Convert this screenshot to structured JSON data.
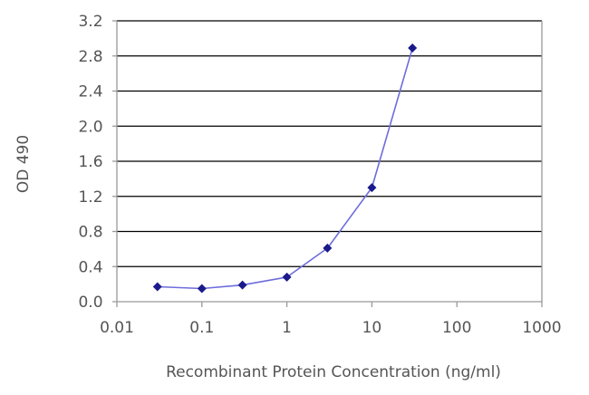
{
  "chart_data": {
    "type": "line",
    "title": "",
    "xlabel": "Recombinant Protein Concentration (ng/ml)",
    "ylabel": "OD 490",
    "x_scale": "log",
    "xlim": [
      0.01,
      1000
    ],
    "ylim": [
      0.0,
      3.2
    ],
    "x_ticks": [
      0.01,
      0.1,
      1,
      10,
      100,
      1000
    ],
    "x_tick_labels": [
      "0.01",
      "0.1",
      "1",
      "10",
      "100",
      "1000"
    ],
    "y_ticks": [
      0.0,
      0.4,
      0.8,
      1.2,
      1.6,
      2.0,
      2.4,
      2.8,
      3.2
    ],
    "y_tick_labels": [
      "0.0",
      "0.4",
      "0.8",
      "1.2",
      "1.6",
      "2.0",
      "2.4",
      "2.8",
      "3.2"
    ],
    "grid": "horizontal",
    "legend": "none",
    "series": [
      {
        "x": [
          0.03,
          0.1,
          0.3,
          1,
          3,
          10,
          30
        ],
        "y": [
          0.17,
          0.15,
          0.19,
          0.28,
          0.61,
          1.3,
          2.89
        ]
      }
    ],
    "colors": {
      "line": "#6d6ddc",
      "marker": "#1a1a8c",
      "grid": "#000000",
      "axis": "#999999",
      "text": "#555555"
    }
  }
}
